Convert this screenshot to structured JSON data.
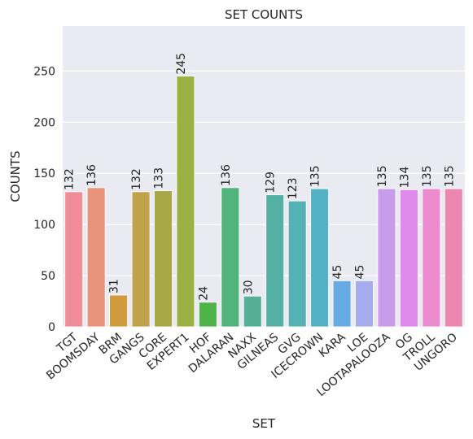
{
  "chart_data": {
    "type": "bar",
    "title": "SET COUNTS",
    "xlabel": "SET",
    "ylabel": "COUNTS",
    "categories": [
      "TGT",
      "BOOMSDAY",
      "BRM",
      "GANGS",
      "CORE",
      "EXPERT1",
      "HOF",
      "DALARAN",
      "NAXX",
      "GILNEAS",
      "GVG",
      "ICECROWN",
      "KARA",
      "LOE",
      "LOOTAPALOOZA",
      "OG",
      "TROLL",
      "UNGORO"
    ],
    "values": [
      132,
      136,
      31,
      132,
      133,
      245,
      24,
      136,
      30,
      129,
      123,
      135,
      45,
      45,
      135,
      134,
      135,
      135
    ],
    "data_labels": [
      "132",
      "136",
      "31",
      "132",
      "133",
      "245",
      "24",
      "136",
      "30",
      "129",
      "123",
      "135",
      "45",
      "45",
      "135",
      "134",
      "135",
      "135"
    ],
    "colors": [
      "#ef8e9a",
      "#e8947b",
      "#d19a3c",
      "#c2a14d",
      "#a9a846",
      "#9db044",
      "#4fb448",
      "#52b37c",
      "#55af94",
      "#54b0a4",
      "#55b1b3",
      "#54b1c6",
      "#66abe3",
      "#a5acee",
      "#c79de9",
      "#e18aed",
      "#ec8bcf",
      "#eb87b1"
    ],
    "ylim": [
      0,
      294
    ],
    "yticks": [
      0,
      50,
      100,
      150,
      200,
      250
    ],
    "ytick_labels": [
      "0",
      "50",
      "100",
      "150",
      "200",
      "250"
    ],
    "grid": true,
    "background": "#eaeaf2"
  }
}
